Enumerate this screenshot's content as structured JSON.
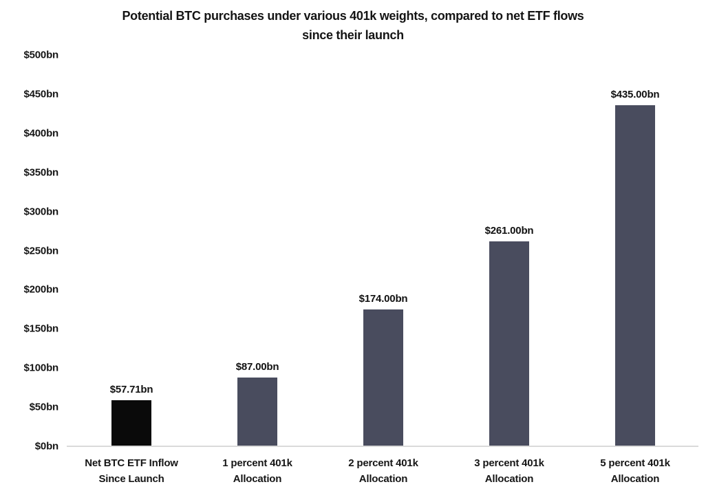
{
  "chart_data": {
    "type": "bar",
    "title": "Potential BTC purchases under various 401k weights, compared to net ETF flows since their launch",
    "title_lines": [
      "Potential BTC purchases under various 401k weights, compared to net ETF flows",
      "since their launch"
    ],
    "categories": [
      "Net BTC ETF Inflow Since Launch",
      "1 percent 401k Allocation",
      "2 percent 401k Allocation",
      "3 percent 401k Allocation",
      "5 percent 401k Allocation"
    ],
    "category_lines": [
      [
        "Net BTC ETF Inflow",
        "Since Launch"
      ],
      [
        "1 percent 401k",
        "Allocation"
      ],
      [
        "2 percent 401k",
        "Allocation"
      ],
      [
        "3 percent 401k",
        "Allocation"
      ],
      [
        "5 percent 401k",
        "Allocation"
      ]
    ],
    "values": [
      57.71,
      87.0,
      174.0,
      261.0,
      435.0
    ],
    "value_labels": [
      "$57.71bn",
      "$87.00bn",
      "$174.00bn",
      "$261.00bn",
      "$435.00bn"
    ],
    "bar_colors": [
      "#0a0a0a",
      "#494c5e",
      "#494c5e",
      "#494c5e",
      "#494c5e"
    ],
    "xlabel": "",
    "ylabel": "",
    "ylim": [
      0,
      500
    ],
    "ytick_values": [
      0,
      50,
      100,
      150,
      200,
      250,
      300,
      350,
      400,
      450,
      500
    ],
    "ytick_labels": [
      "$0bn",
      "$50bn",
      "$100bn",
      "$150bn",
      "$200bn",
      "$250bn",
      "$300bn",
      "$350bn",
      "$400bn",
      "$450bn",
      "$500bn"
    ],
    "grid": false,
    "legend": null
  },
  "colors": {
    "background": "#ffffff",
    "text": "#151515",
    "axis_line": "#dadada",
    "bar_primary": "#0a0a0a",
    "bar_secondary": "#494c5e"
  }
}
